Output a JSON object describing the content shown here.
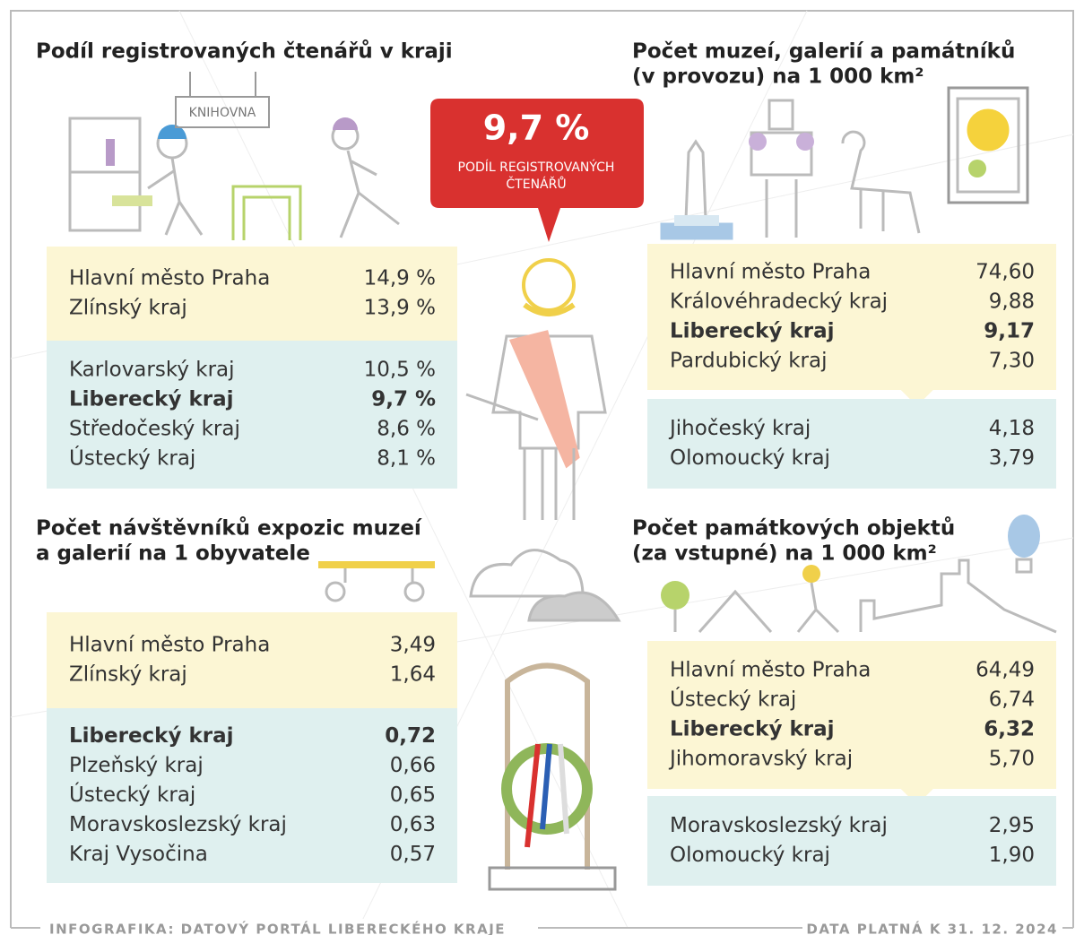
{
  "badge": {
    "value": "9,7 %",
    "caption_lines": [
      "PODÍL REGISTROVANÝCH",
      "ČTENÁŘŮ"
    ]
  },
  "sign": "KNIHOVNA",
  "panels": [
    {
      "title_lines": [
        "Podíl registrovaných čtenářů v kraji"
      ],
      "groups": [
        [
          {
            "label": "Hlavní město Praha",
            "value": "14,9 %"
          },
          {
            "label": "Zlínský kraj",
            "value": "13,9 %"
          }
        ],
        [
          {
            "label": "Karlovarský kraj",
            "value": "10,5 %"
          },
          {
            "label": "Liberecký kraj",
            "value": "9,7 %",
            "bold": true
          },
          {
            "label": "Středočeský kraj",
            "value": "8,6 %"
          },
          {
            "label": "Ústecký kraj",
            "value": "8,1 %"
          }
        ]
      ]
    },
    {
      "title_lines": [
        "Počet muzeí, galerií a památníků",
        "(v provozu) na 1 000 km²"
      ],
      "groups": [
        [
          {
            "label": "Hlavní město Praha",
            "value": "74,60"
          },
          {
            "label": "Královéhradecký kraj",
            "value": "9,88"
          },
          {
            "label": "Liberecký kraj",
            "value": "9,17",
            "bold": true
          },
          {
            "label": "Pardubický kraj",
            "value": "7,30"
          }
        ],
        [
          {
            "label": "Jihočeský kraj",
            "value": "4,18"
          },
          {
            "label": "Olomoucký kraj",
            "value": "3,79"
          }
        ]
      ]
    },
    {
      "title_lines": [
        "Počet návštěvníků expozic muzeí",
        "a galerií na 1 obyvatele"
      ],
      "groups": [
        [
          {
            "label": "Hlavní město Praha",
            "value": "3,49"
          },
          {
            "label": "Zlínský kraj",
            "value": "1,64"
          }
        ],
        [
          {
            "label": "Liberecký kraj",
            "value": "0,72",
            "bold": true
          },
          {
            "label": "Plzeňský kraj",
            "value": "0,66"
          },
          {
            "label": "Ústecký kraj",
            "value": "0,65"
          },
          {
            "label": "Moravskoslezský kraj",
            "value": "0,63"
          },
          {
            "label": "Kraj Vysočina",
            "value": "0,57"
          }
        ]
      ]
    },
    {
      "title_lines": [
        "Počet památkových objektů",
        "(za vstupné) na 1 000 km²"
      ],
      "groups": [
        [
          {
            "label": "Hlavní město Praha",
            "value": "64,49"
          },
          {
            "label": "Ústecký kraj",
            "value": "6,74"
          },
          {
            "label": "Liberecký kraj",
            "value": "6,32",
            "bold": true
          },
          {
            "label": "Jihomoravský kraj",
            "value": "5,70"
          }
        ],
        [
          {
            "label": "Moravskoslezský kraj",
            "value": "2,95"
          },
          {
            "label": "Olomoucký kraj",
            "value": "1,90"
          }
        ]
      ]
    }
  ],
  "footer": {
    "left": "INFOGRAFIKA: DATOVÝ PORTÁL LIBERECKÉHO KRAJE",
    "right": "DATA PLATNÁ K 31. 12. 2024"
  }
}
